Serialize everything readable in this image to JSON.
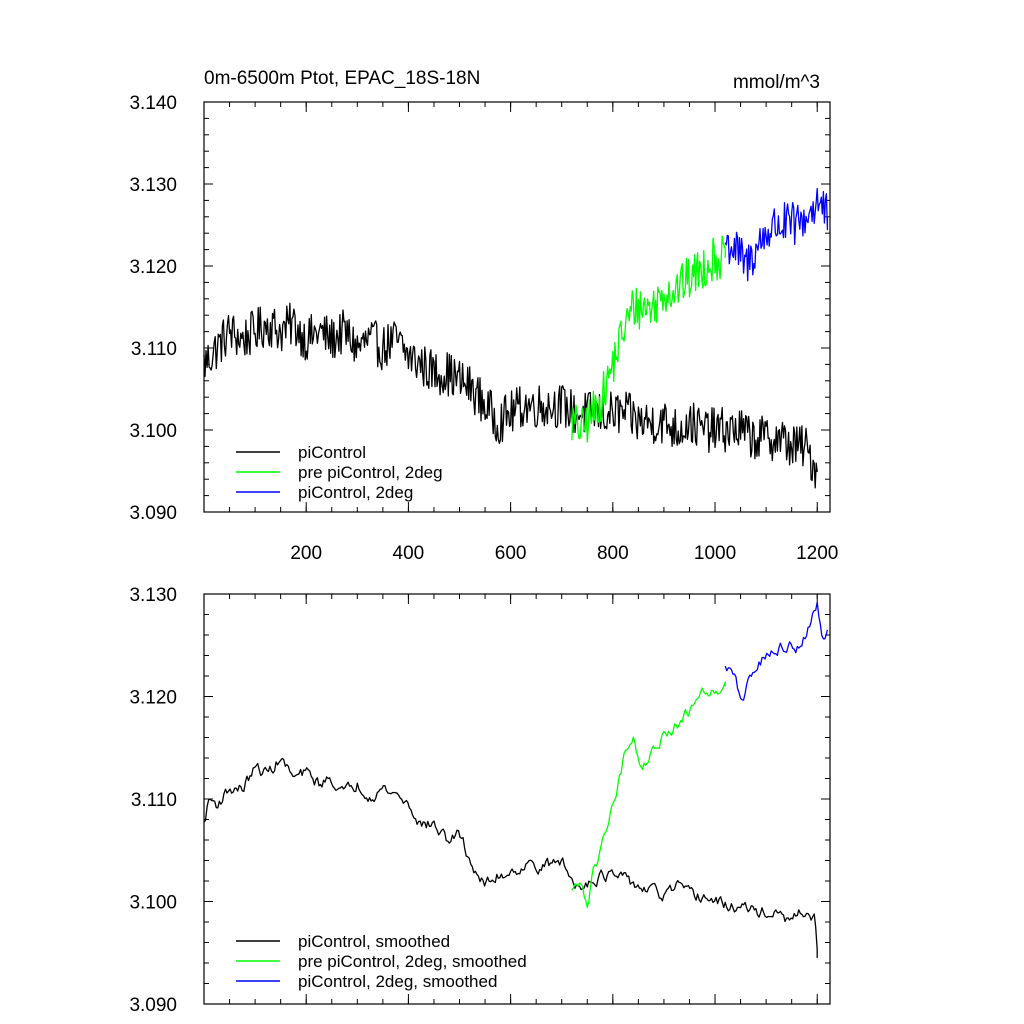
{
  "figure": {
    "title_left": "0m-6500m Ptot, EPAC_18S-18N",
    "title_right": "mmol/m^3"
  },
  "chart_data": [
    {
      "type": "line",
      "title": "0m-6500m Ptot, EPAC_18S-18N",
      "units_label": "mmol/m^3",
      "xlim": [
        0,
        1225
      ],
      "ylim": [
        3.09,
        3.14
      ],
      "x_ticks": [
        200,
        400,
        600,
        800,
        1000,
        1200
      ],
      "x_tick_labels": [
        "200",
        "400",
        "600",
        "800",
        "1000",
        "1200"
      ],
      "y_ticks": [
        3.09,
        3.1,
        3.11,
        3.12,
        3.13,
        3.14
      ],
      "y_tick_labels": [
        "3.090",
        "3.100",
        "3.110",
        "3.120",
        "3.130",
        "3.140"
      ],
      "grid": false,
      "legend_position": "bottom-left",
      "series": [
        {
          "name": "piControl",
          "color": "#000000",
          "x": [
            0,
            25,
            50,
            75,
            100,
            125,
            150,
            175,
            200,
            225,
            250,
            275,
            300,
            325,
            350,
            375,
            400,
            425,
            450,
            475,
            500,
            525,
            550,
            575,
            600,
            625,
            650,
            675,
            700,
            725,
            750,
            775,
            800,
            825,
            850,
            875,
            900,
            925,
            950,
            975,
            1000,
            1025,
            1050,
            1075,
            1100,
            1125,
            1150,
            1175,
            1200
          ],
          "y": [
            3.108,
            3.11,
            3.112,
            3.111,
            3.112,
            3.113,
            3.112,
            3.113,
            3.111,
            3.112,
            3.111,
            3.112,
            3.11,
            3.111,
            3.11,
            3.111,
            3.109,
            3.108,
            3.107,
            3.107,
            3.106,
            3.105,
            3.103,
            3.101,
            3.102,
            3.103,
            3.103,
            3.103,
            3.103,
            3.102,
            3.102,
            3.102,
            3.102,
            3.102,
            3.101,
            3.101,
            3.101,
            3.1,
            3.101,
            3.1,
            3.1,
            3.1,
            3.1,
            3.099,
            3.099,
            3.099,
            3.098,
            3.098,
            3.095
          ]
        },
        {
          "name": "pre piControl, 2deg",
          "color": "#00ff00",
          "x": [
            720,
            740,
            760,
            780,
            800,
            820,
            840,
            860,
            880,
            900,
            920,
            940,
            960,
            980,
            1000,
            1020
          ],
          "y": [
            3.101,
            3.1,
            3.102,
            3.104,
            3.108,
            3.112,
            3.115,
            3.115,
            3.115,
            3.117,
            3.117,
            3.118,
            3.119,
            3.12,
            3.121,
            3.121
          ]
        },
        {
          "name": "piControl, 2deg",
          "color": "#0000ff",
          "x": [
            1020,
            1040,
            1060,
            1080,
            1100,
            1120,
            1140,
            1160,
            1180,
            1200,
            1220
          ],
          "y": [
            3.123,
            3.122,
            3.12,
            3.122,
            3.124,
            3.125,
            3.125,
            3.125,
            3.126,
            3.128,
            3.126
          ]
        }
      ]
    },
    {
      "type": "line",
      "xlim": [
        0,
        1225
      ],
      "ylim": [
        3.09,
        3.13
      ],
      "x_ticks": [
        200,
        400,
        600,
        800,
        1000,
        1200
      ],
      "x_tick_labels": [],
      "y_ticks": [
        3.09,
        3.1,
        3.11,
        3.12,
        3.13
      ],
      "y_tick_labels": [
        "3.090",
        "3.100",
        "3.110",
        "3.120",
        "3.130"
      ],
      "grid": false,
      "legend_position": "bottom-left",
      "series": [
        {
          "name": "piControl, smoothed",
          "color": "#000000",
          "x": [
            0,
            10,
            25,
            50,
            75,
            100,
            125,
            150,
            175,
            200,
            225,
            250,
            275,
            300,
            325,
            350,
            375,
            400,
            425,
            450,
            475,
            500,
            525,
            550,
            575,
            600,
            625,
            650,
            675,
            700,
            725,
            750,
            775,
            800,
            825,
            850,
            875,
            900,
            925,
            950,
            975,
            1000,
            1025,
            1050,
            1075,
            1100,
            1125,
            1150,
            1175,
            1195,
            1200
          ],
          "y": [
            3.1075,
            3.11,
            3.1095,
            3.111,
            3.111,
            3.113,
            3.1125,
            3.114,
            3.112,
            3.1125,
            3.1115,
            3.112,
            3.1105,
            3.1115,
            3.1105,
            3.111,
            3.1105,
            3.1095,
            3.1075,
            3.1075,
            3.106,
            3.1065,
            3.1035,
            3.1015,
            3.1025,
            3.103,
            3.1035,
            3.1035,
            3.1035,
            3.104,
            3.1015,
            3.102,
            3.1025,
            3.1025,
            3.102,
            3.1015,
            3.101,
            3.1005,
            3.1015,
            3.1005,
            3.1005,
            3.1,
            3.0995,
            3.0995,
            3.099,
            3.099,
            3.0985,
            3.098,
            3.099,
            3.0985,
            3.0945
          ]
        },
        {
          "name": "pre piControl, 2deg, smoothed",
          "color": "#00ff00",
          "x": [
            720,
            740,
            750,
            760,
            770,
            780,
            790,
            800,
            810,
            820,
            830,
            840,
            850,
            860,
            880,
            900,
            920,
            940,
            960,
            980,
            1000,
            1020
          ],
          "y": [
            3.1015,
            3.101,
            3.1,
            3.1025,
            3.104,
            3.1055,
            3.108,
            3.1095,
            3.1115,
            3.1135,
            3.1155,
            3.1165,
            3.114,
            3.1135,
            3.1145,
            3.116,
            3.117,
            3.118,
            3.1195,
            3.1205,
            3.121,
            3.121
          ]
        },
        {
          "name": "piControl, 2deg, smoothed",
          "color": "#0000ff",
          "x": [
            1020,
            1040,
            1050,
            1060,
            1080,
            1100,
            1120,
            1140,
            1160,
            1180,
            1190,
            1200,
            1210,
            1220
          ],
          "y": [
            3.123,
            3.1215,
            3.12,
            3.1205,
            3.123,
            3.124,
            3.1245,
            3.125,
            3.125,
            3.126,
            3.128,
            3.129,
            3.1255,
            3.1265
          ]
        }
      ]
    }
  ]
}
